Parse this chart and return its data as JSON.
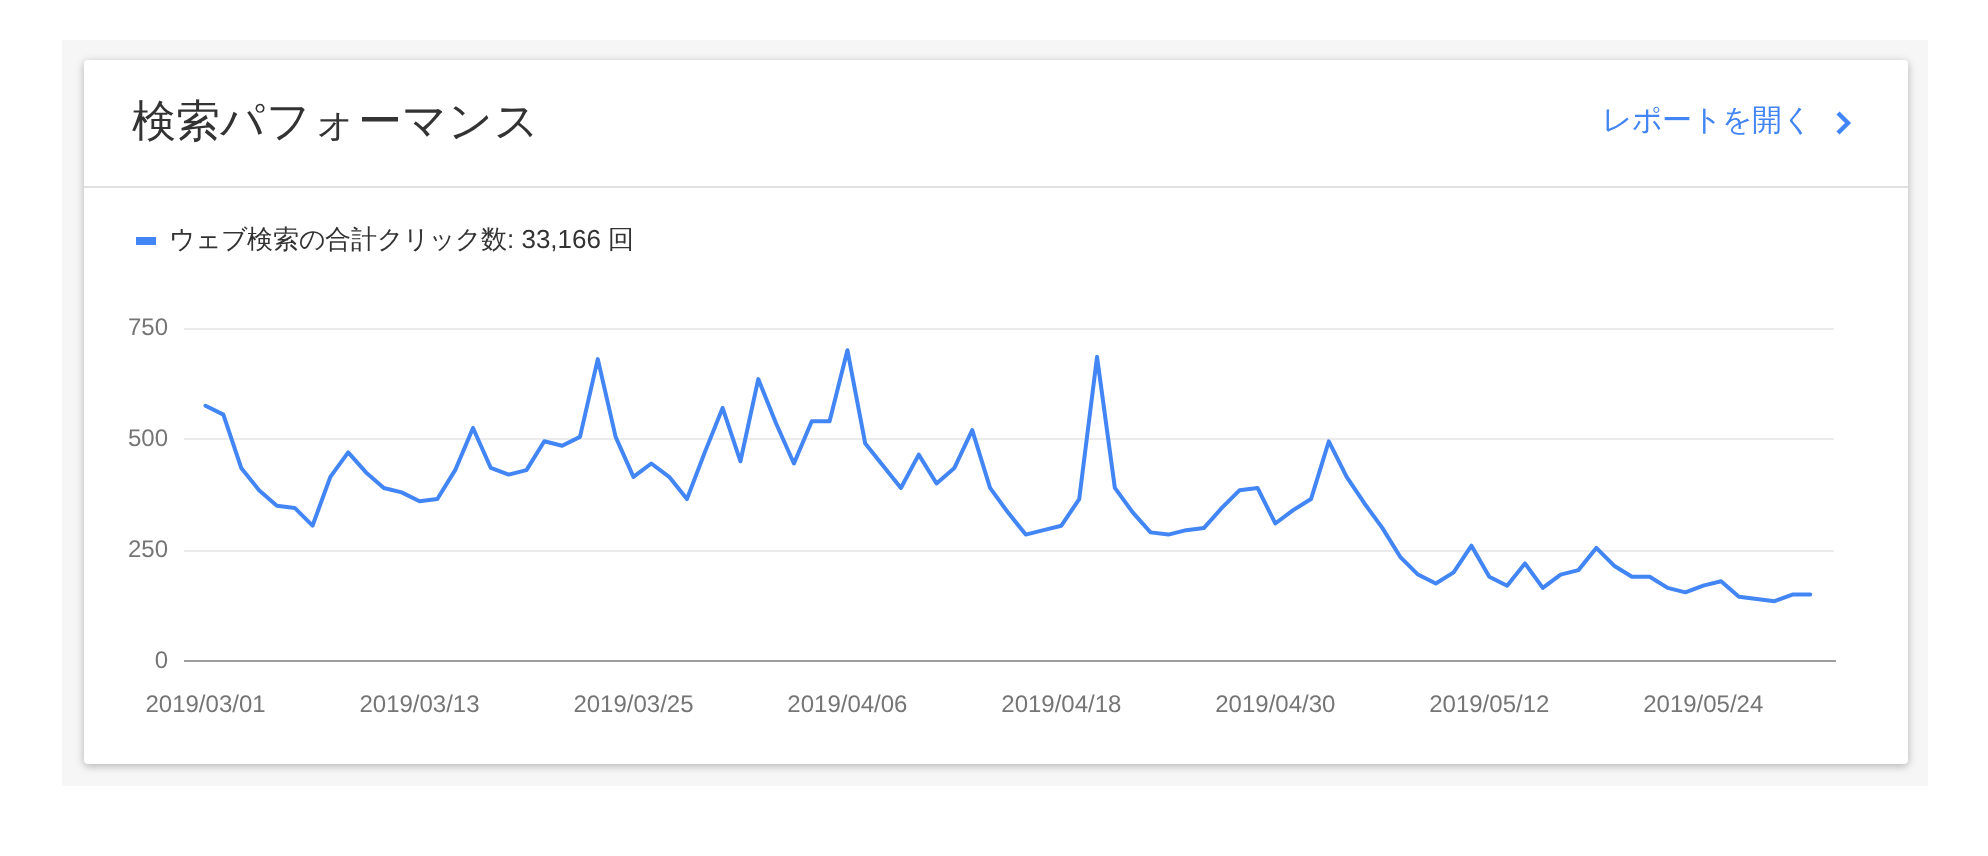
{
  "chart_data": {
    "type": "line",
    "title": "検索パフォーマンス",
    "annotations": [
      "レポートを開く"
    ],
    "x": [
      "2019-03-01",
      "2019-03-02",
      "2019-03-03",
      "2019-03-04",
      "2019-03-05",
      "2019-03-06",
      "2019-03-07",
      "2019-03-08",
      "2019-03-09",
      "2019-03-10",
      "2019-03-11",
      "2019-03-12",
      "2019-03-13",
      "2019-03-14",
      "2019-03-15",
      "2019-03-16",
      "2019-03-17",
      "2019-03-18",
      "2019-03-19",
      "2019-03-20",
      "2019-03-21",
      "2019-03-22",
      "2019-03-23",
      "2019-03-24",
      "2019-03-25",
      "2019-03-26",
      "2019-03-27",
      "2019-03-28",
      "2019-03-29",
      "2019-03-30",
      "2019-03-31",
      "2019-04-01",
      "2019-04-02",
      "2019-04-03",
      "2019-04-04",
      "2019-04-05",
      "2019-04-06",
      "2019-04-07",
      "2019-04-08",
      "2019-04-09",
      "2019-04-10",
      "2019-04-11",
      "2019-04-12",
      "2019-04-13",
      "2019-04-14",
      "2019-04-15",
      "2019-04-16",
      "2019-04-17",
      "2019-04-18",
      "2019-04-19",
      "2019-04-20",
      "2019-04-21",
      "2019-04-22",
      "2019-04-23",
      "2019-04-24",
      "2019-04-25",
      "2019-04-26",
      "2019-04-27",
      "2019-04-28",
      "2019-04-29",
      "2019-04-30",
      "2019-05-01",
      "2019-05-02",
      "2019-05-03",
      "2019-05-04",
      "2019-05-05",
      "2019-05-06",
      "2019-05-07",
      "2019-05-08",
      "2019-05-09",
      "2019-05-10",
      "2019-05-11",
      "2019-05-12",
      "2019-05-13",
      "2019-05-14",
      "2019-05-15",
      "2019-05-16",
      "2019-05-17",
      "2019-05-18",
      "2019-05-19",
      "2019-05-20",
      "2019-05-21",
      "2019-05-22",
      "2019-05-23",
      "2019-05-24",
      "2019-05-25",
      "2019-05-26",
      "2019-05-27",
      "2019-05-28",
      "2019-05-29",
      "2019-05-30"
    ],
    "series": [
      {
        "name": "ウェブ検索の合計クリック数: 33,166 回",
        "color": "#4285f4",
        "values": [
          575,
          555,
          435,
          385,
          350,
          345,
          305,
          415,
          470,
          425,
          390,
          380,
          360,
          365,
          430,
          525,
          435,
          420,
          430,
          495,
          485,
          505,
          680,
          505,
          415,
          445,
          415,
          365,
          470,
          570,
          450,
          635,
          535,
          445,
          540,
          540,
          700,
          490,
          440,
          390,
          465,
          400,
          435,
          520,
          390,
          335,
          285,
          295,
          305,
          365,
          685,
          390,
          335,
          290,
          285,
          295,
          300,
          345,
          385,
          390,
          310,
          340,
          365,
          495,
          415,
          355,
          300,
          235,
          195,
          175,
          200,
          260,
          190,
          170,
          220,
          165,
          195,
          205,
          255,
          215,
          190,
          190,
          165,
          155,
          170,
          180,
          145,
          140,
          135,
          150,
          150
        ]
      }
    ],
    "xlim": [
      "2019-02-27T19:00",
      "2019-05-31T08:00"
    ],
    "xticks": [
      {
        "value": "2019-03-01",
        "label": "2019/03/01"
      },
      {
        "value": "2019-03-13",
        "label": "2019/03/13"
      },
      {
        "value": "2019-03-25",
        "label": "2019/03/25"
      },
      {
        "value": "2019-04-06",
        "label": "2019/04/06"
      },
      {
        "value": "2019-04-18",
        "label": "2019/04/18"
      },
      {
        "value": "2019-04-30",
        "label": "2019/04/30"
      },
      {
        "value": "2019-05-12",
        "label": "2019/05/12"
      },
      {
        "value": "2019-05-24",
        "label": "2019/05/24"
      }
    ],
    "ylim": [
      0,
      750
    ],
    "yticks": [
      0,
      250,
      500,
      750
    ],
    "grid": "y",
    "legend": "top left"
  }
}
